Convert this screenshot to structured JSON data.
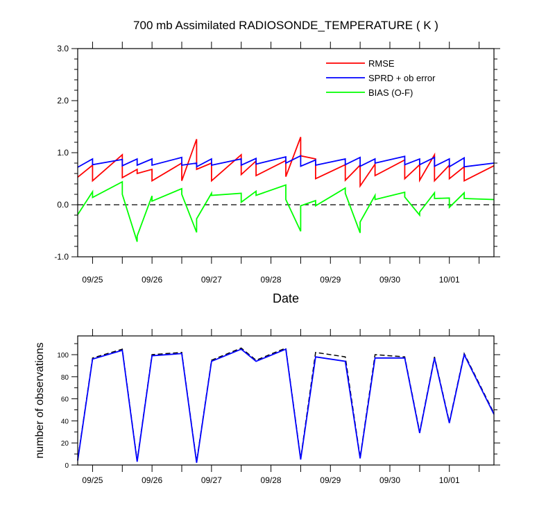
{
  "chart_data": [
    {
      "type": "line",
      "title": "700 mb Assimilated RADIOSONDE_TEMPERATURE ( K )",
      "xlabel": "Date",
      "ylabel": "",
      "xlim": [
        0,
        7.0
      ],
      "ylim": [
        -1.0,
        3.0
      ],
      "yticks": [
        "-1.0",
        "0.0",
        "1.0",
        "2.0",
        "3.0"
      ],
      "yminor_step": 0.2,
      "xtick_positions": [
        0.25,
        1.25,
        2.25,
        3.25,
        4.25,
        5.25,
        6.25
      ],
      "xticks": [
        "09/25",
        "09/26",
        "09/27",
        "09/28",
        "09/29",
        "09/30",
        "10/01"
      ],
      "zero_line": "dashed",
      "legend_position": "top-right",
      "series": [
        {
          "name": "RMSE",
          "color": "#ff0000",
          "x": [
            0,
            0.25,
            0.25,
            0.75,
            0.75,
            1.0,
            1.0,
            1.25,
            1.25,
            1.75,
            1.75,
            2.0,
            2.0,
            2.25,
            2.25,
            2.75,
            2.75,
            3.0,
            3.0,
            3.5,
            3.5,
            3.75,
            3.75,
            4.0,
            4.0,
            4.5,
            4.5,
            4.75,
            4.75,
            5.0,
            5.0,
            5.5,
            5.5,
            5.75,
            5.75,
            6.0,
            6.0,
            6.25,
            6.25,
            6.5,
            6.5,
            7.0
          ],
          "y": [
            0.53,
            0.76,
            0.46,
            0.96,
            0.52,
            0.68,
            0.6,
            0.68,
            0.46,
            0.8,
            0.46,
            1.26,
            0.68,
            0.8,
            0.46,
            0.96,
            0.58,
            0.84,
            0.56,
            0.85,
            0.54,
            1.3,
            0.94,
            0.88,
            0.5,
            0.77,
            0.47,
            0.76,
            0.36,
            0.78,
            0.56,
            0.86,
            0.5,
            0.77,
            0.47,
            0.96,
            0.46,
            0.76,
            0.5,
            0.73,
            0.46,
            0.75
          ]
        },
        {
          "name": "SPRD + ob error",
          "color": "#0000ff",
          "x": [
            0,
            0.25,
            0.25,
            0.75,
            0.75,
            1.0,
            1.0,
            1.25,
            1.25,
            1.75,
            1.75,
            2.0,
            2.0,
            2.25,
            2.25,
            2.75,
            2.75,
            3.0,
            3.0,
            3.5,
            3.5,
            3.75,
            3.75,
            4.0,
            4.0,
            4.5,
            4.5,
            4.75,
            4.75,
            5.0,
            5.0,
            5.5,
            5.5,
            5.75,
            5.75,
            6.0,
            6.0,
            6.25,
            6.25,
            6.5,
            6.5,
            7.0
          ],
          "y": [
            0.72,
            0.88,
            0.77,
            0.87,
            0.75,
            0.88,
            0.76,
            0.88,
            0.76,
            0.91,
            0.76,
            0.8,
            0.73,
            0.88,
            0.76,
            0.88,
            0.76,
            0.89,
            0.78,
            0.92,
            0.8,
            0.94,
            0.74,
            0.86,
            0.76,
            0.88,
            0.77,
            0.91,
            0.74,
            0.88,
            0.8,
            0.93,
            0.77,
            0.88,
            0.77,
            0.91,
            0.74,
            0.88,
            0.73,
            0.9,
            0.73,
            0.8
          ]
        },
        {
          "name": "BIAS (O-F)",
          "color": "#00ff00",
          "x": [
            0,
            0.25,
            0.25,
            0.75,
            0.75,
            1.0,
            1.0,
            1.25,
            1.25,
            1.75,
            1.75,
            2.0,
            2.0,
            2.25,
            2.25,
            2.75,
            2.75,
            3.0,
            3.0,
            3.5,
            3.5,
            3.75,
            3.75,
            4.0,
            4.0,
            4.5,
            4.5,
            4.75,
            4.75,
            5.0,
            5.0,
            5.5,
            5.5,
            5.75,
            5.75,
            6.0,
            6.0,
            6.25,
            6.25,
            6.5,
            6.5,
            7.0
          ],
          "y": [
            -0.19,
            0.25,
            0.14,
            0.44,
            0.2,
            -0.71,
            -0.6,
            0.17,
            0.07,
            0.31,
            0.2,
            -0.53,
            -0.27,
            0.22,
            0.18,
            0.22,
            0.05,
            0.26,
            0.18,
            0.38,
            0.1,
            -0.51,
            -0.02,
            0.08,
            -0.02,
            0.32,
            0.22,
            -0.54,
            -0.33,
            0.18,
            0.1,
            0.24,
            0.15,
            -0.2,
            -0.14,
            0.23,
            0.12,
            0.13,
            -0.05,
            0.23,
            0.12,
            0.1
          ]
        }
      ]
    },
    {
      "type": "line",
      "title": "",
      "xlabel": "",
      "ylabel": "number of observations",
      "xlim": [
        0,
        7.0
      ],
      "ylim": [
        0,
        117
      ],
      "yticks": [
        "0",
        "20",
        "40",
        "60",
        "80",
        "100"
      ],
      "ytick_values": [
        0,
        20,
        40,
        60,
        80,
        100
      ],
      "yminor_step": 10,
      "xtick_positions": [
        0.25,
        1.25,
        2.25,
        3.25,
        4.25,
        5.25,
        6.25
      ],
      "xticks": [
        "09/25",
        "09/26",
        "09/27",
        "09/28",
        "09/29",
        "09/30",
        "10/01"
      ],
      "series": [
        {
          "color": "#000000",
          "style": "dashed",
          "x": [
            0,
            0.25,
            0.75,
            1.0,
            1.25,
            1.75,
            2.0,
            2.25,
            2.75,
            3.0,
            3.5,
            3.75,
            4.0,
            4.5,
            4.75,
            5.0,
            5.5,
            5.75,
            6.0,
            6.25,
            6.5,
            7.0
          ],
          "y": [
            5,
            97,
            105,
            4,
            100,
            102,
            3,
            95,
            106,
            95,
            106,
            6,
            102,
            98,
            7,
            100,
            98,
            30,
            98,
            39,
            101,
            47
          ]
        },
        {
          "color": "#0000ff",
          "style": "solid",
          "x": [
            0,
            0.25,
            0.75,
            1.0,
            1.25,
            1.75,
            2.0,
            2.25,
            2.75,
            3.0,
            3.5,
            3.75,
            4.0,
            4.5,
            4.75,
            5.0,
            5.5,
            5.75,
            6.0,
            6.25,
            6.5,
            7.0
          ],
          "y": [
            4,
            96,
            104,
            3,
            99,
            101,
            2,
            94,
            105,
            94,
            105,
            5,
            98,
            94,
            6,
            97,
            97,
            29,
            97,
            38,
            100,
            46
          ]
        }
      ]
    }
  ]
}
